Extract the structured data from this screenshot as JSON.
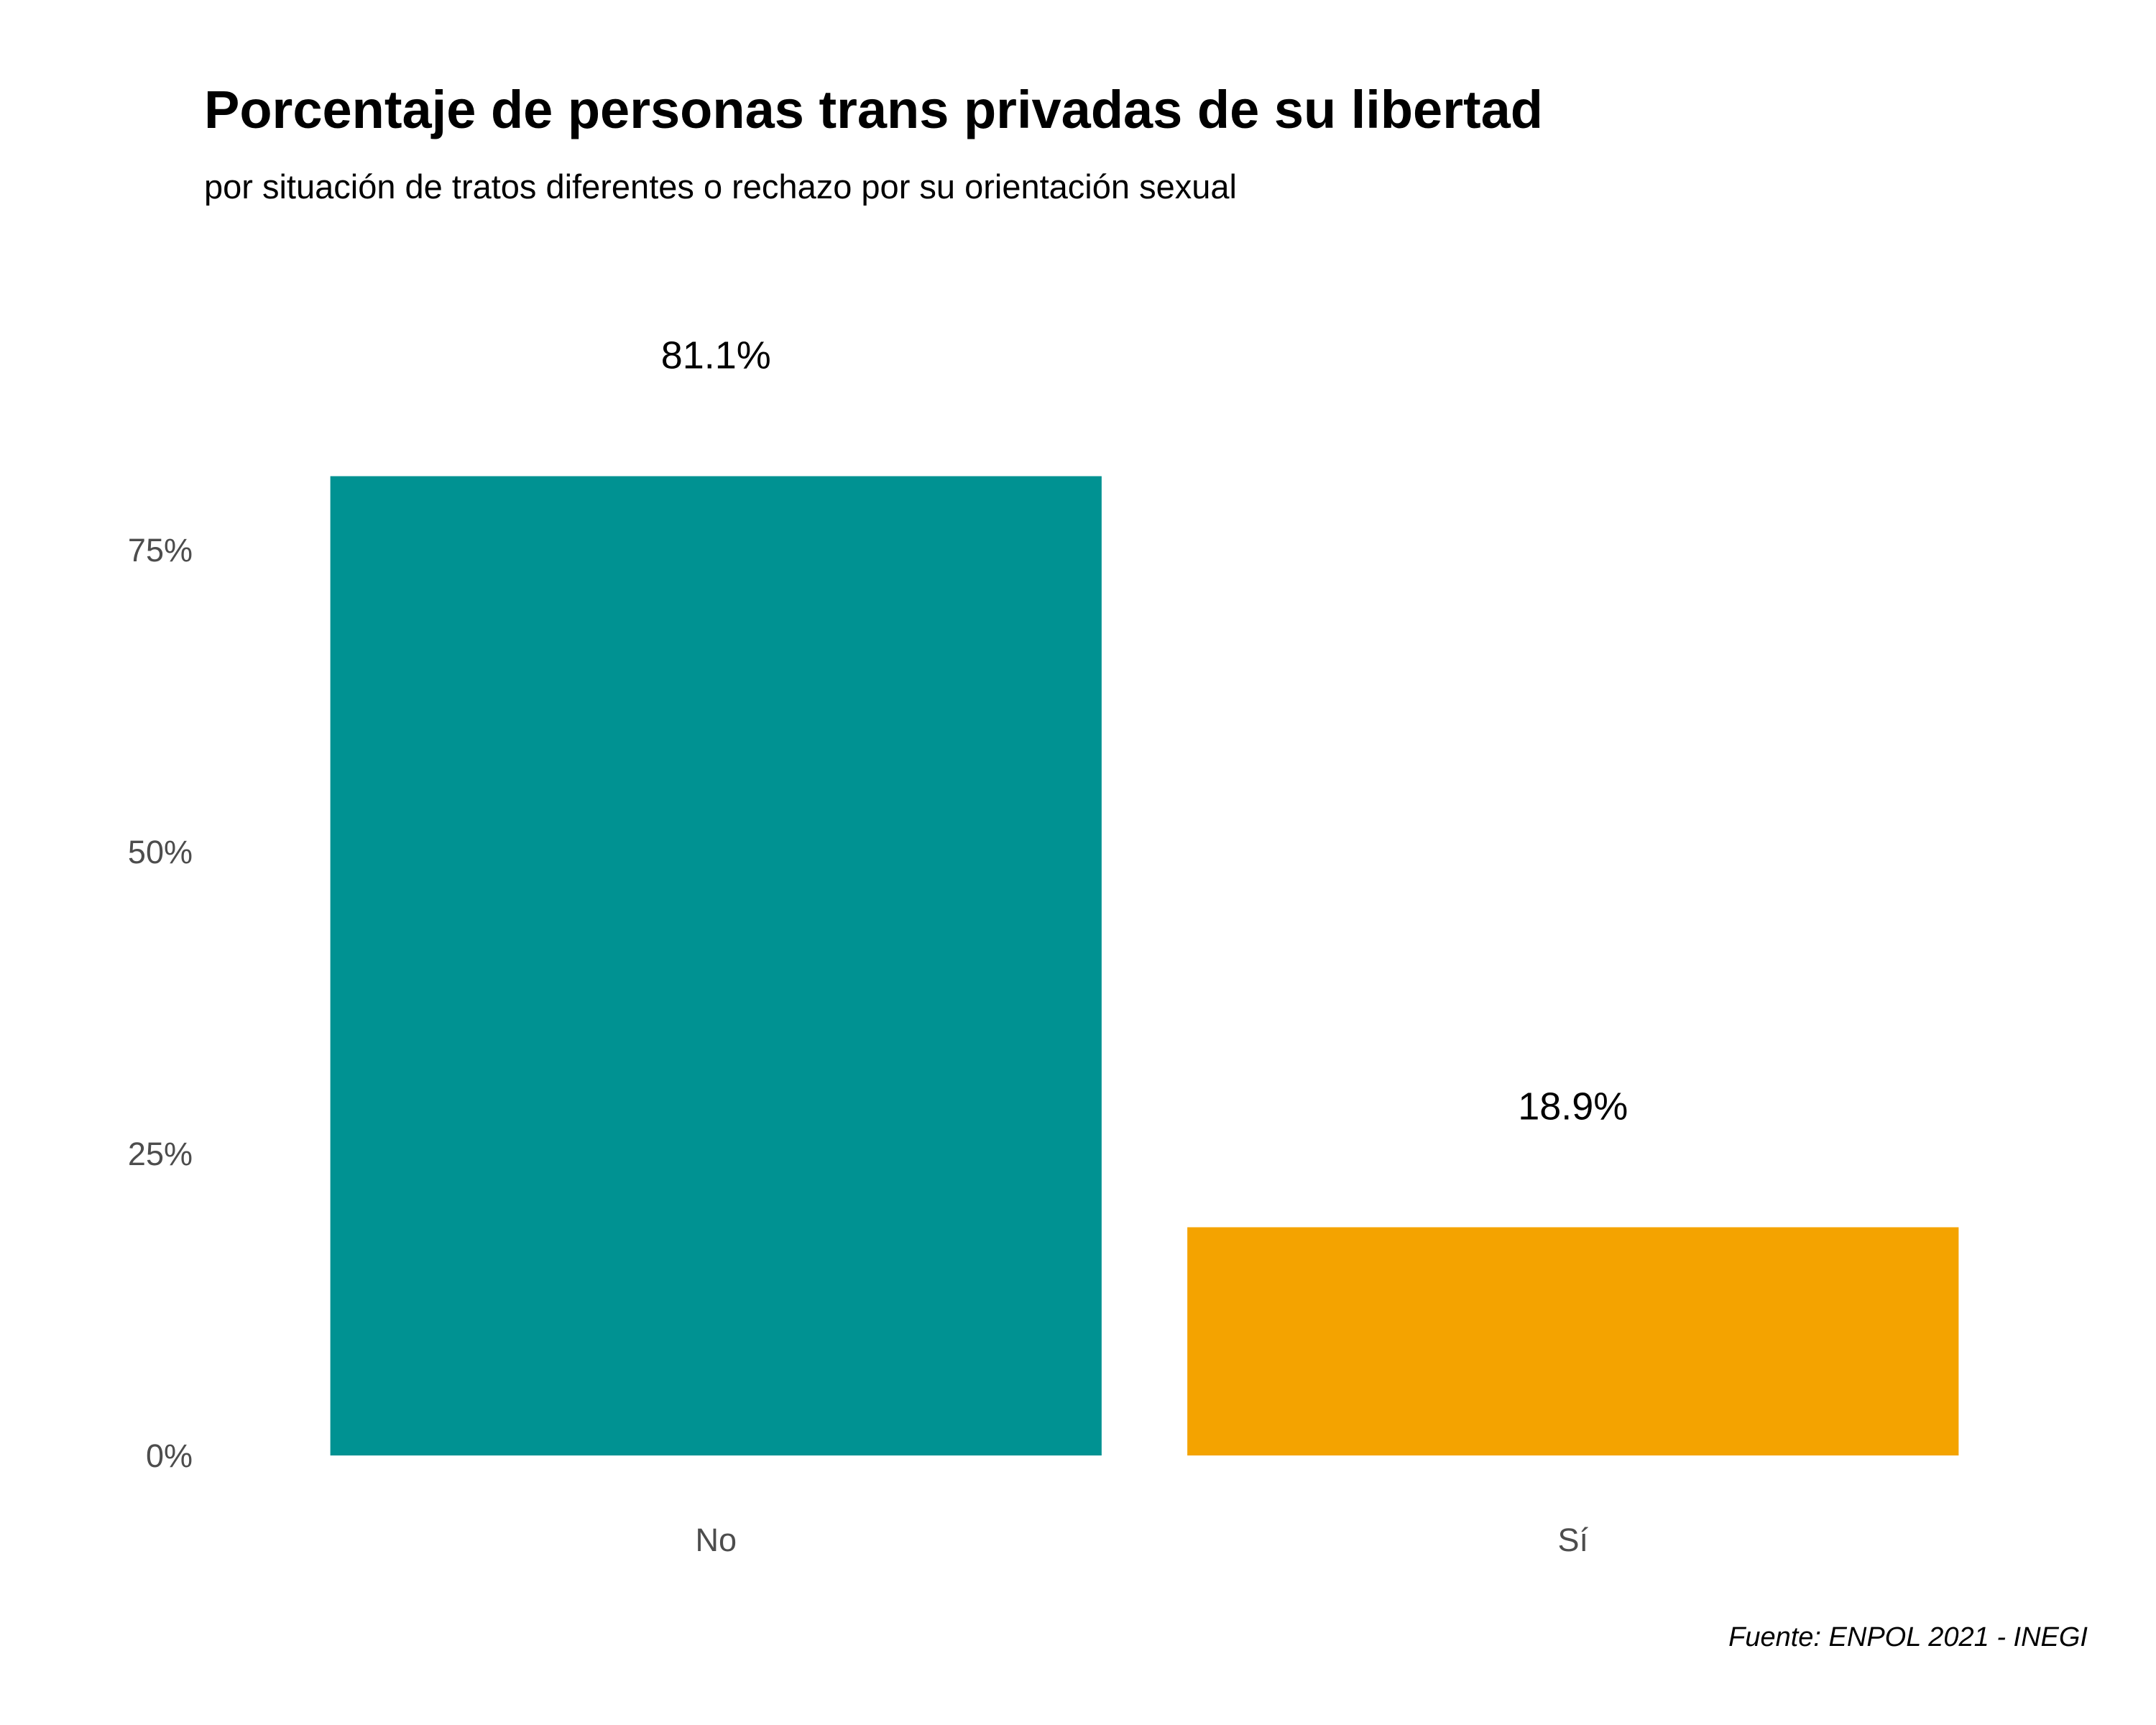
{
  "chart_data": {
    "type": "bar",
    "title": "Porcentaje de personas trans privadas de su libertad",
    "subtitle": "por situación de tratos diferentes o rechazo por su orientación sexual",
    "caption": "Fuente: ENPOL 2021 - INEGI",
    "xlabel": "",
    "ylabel": "",
    "categories": [
      "No",
      "Sí"
    ],
    "values": [
      81.1,
      18.9
    ],
    "value_labels": [
      "81.1%",
      "18.9%"
    ],
    "colors": [
      "#009292",
      "#F4A300"
    ],
    "ylim": [
      0,
      100
    ],
    "yticks": [
      0,
      25,
      50,
      75
    ],
    "ytick_labels": [
      "0%",
      "25%",
      "50%",
      "75%"
    ],
    "grid": false,
    "legend": "none"
  }
}
